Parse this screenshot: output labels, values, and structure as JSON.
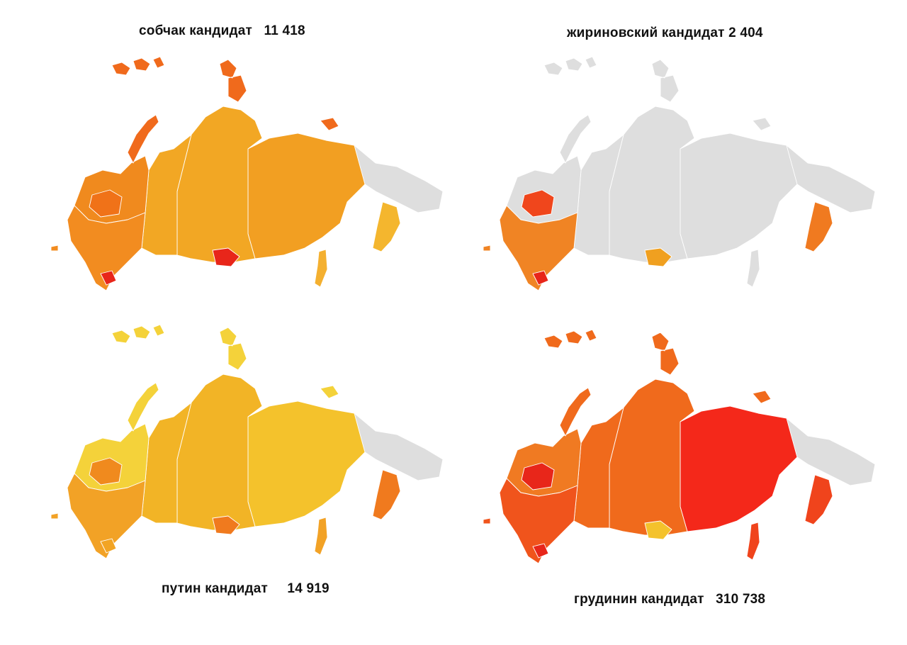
{
  "panels": [
    {
      "id": "sobchak",
      "caption": "собчак кандидат   11 418",
      "colors": {
        "base": "#f2a724",
        "east": "#f29f22",
        "chukotka": "#dedede",
        "northwest": "#f08a1e",
        "islands": "#f06a1c",
        "accent1": "#f07218",
        "accent2": "#e8261a",
        "accent3": "#e8261a",
        "southwest": "#f28c20",
        "kamchatka": "#f4b62e",
        "sakhalin": "#f4b030"
      }
    },
    {
      "id": "zhirinovsky",
      "caption": "жириновский кандидат 2 404",
      "colors": {
        "base": "#dedede",
        "east": "#dedede",
        "chukotka": "#dedede",
        "northwest": "#dedede",
        "islands": "#dedede",
        "accent1": "#f0461c",
        "accent2": "#f0a020",
        "accent3": "#e8261a",
        "southwest": "#f08424",
        "kamchatka": "#f07a20",
        "sakhalin": "#dedede"
      }
    },
    {
      "id": "putin",
      "caption": "путин кандидат     14 919",
      "colors": {
        "base": "#f2b426",
        "east": "#f4c22c",
        "chukotka": "#dedede",
        "northwest": "#f4d23a",
        "islands": "#f4d23a",
        "accent1": "#f08a1e",
        "accent2": "#f07a1e",
        "accent3": "#f2a424",
        "southwest": "#f2a226",
        "kamchatka": "#f07a1e",
        "sakhalin": "#f2a226"
      }
    },
    {
      "id": "grudinin",
      "caption": "грудинин кандидат   310 738",
      "colors": {
        "base": "#f06a1c",
        "east": "#f4281a",
        "chukotka": "#dedede",
        "northwest": "#f07a22",
        "islands": "#f06a1c",
        "accent1": "#e8261a",
        "accent2": "#f4c22c",
        "accent3": "#e8261a",
        "southwest": "#f0541c",
        "kamchatka": "#f0441c",
        "sakhalin": "#f0441c"
      }
    }
  ]
}
